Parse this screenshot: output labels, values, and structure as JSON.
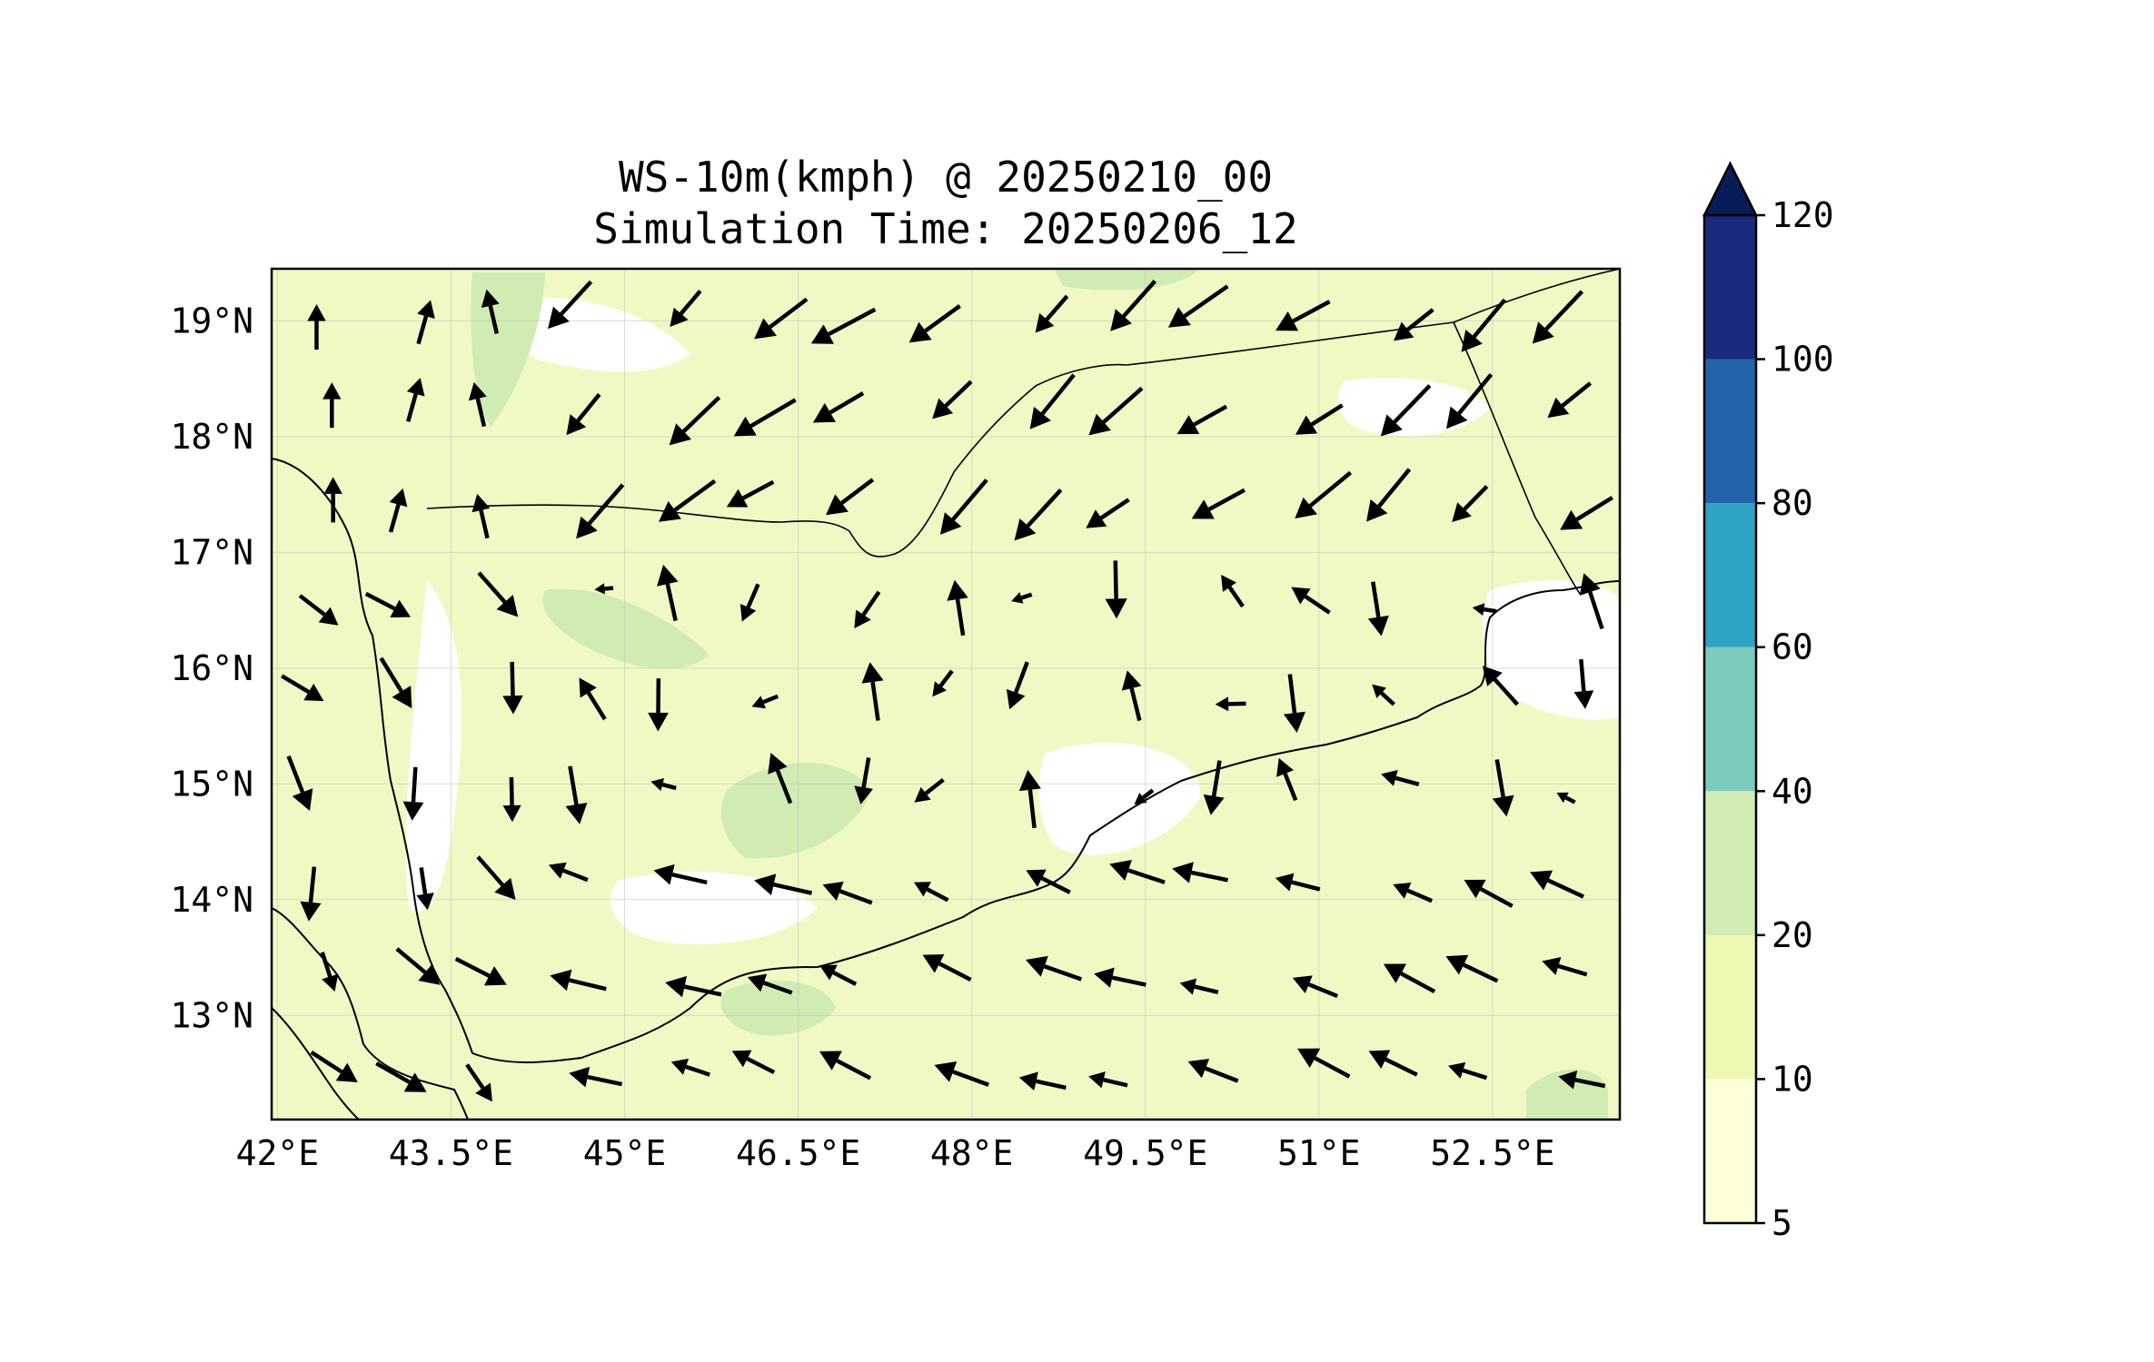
{
  "title": {
    "line1": "WS-10m(kmph) @ 20250210_00",
    "line2": "Simulation Time: 20250206_12"
  },
  "map": {
    "extent_lon": [
      41.95,
      53.6
    ],
    "extent_lat": [
      12.1,
      19.45
    ],
    "x_ticks": [
      {
        "value": 42.0,
        "label": "42°E"
      },
      {
        "value": 43.5,
        "label": "43.5°E"
      },
      {
        "value": 45.0,
        "label": "45°E"
      },
      {
        "value": 46.5,
        "label": "46.5°E"
      },
      {
        "value": 48.0,
        "label": "48°E"
      },
      {
        "value": 49.5,
        "label": "49.5°E"
      },
      {
        "value": 51.0,
        "label": "51°E"
      },
      {
        "value": 52.5,
        "label": "52.5°E"
      }
    ],
    "y_ticks": [
      {
        "value": 19,
        "label": "19°N"
      },
      {
        "value": 18,
        "label": "18°N"
      },
      {
        "value": 17,
        "label": "17°N"
      },
      {
        "value": 16,
        "label": "16°N"
      },
      {
        "value": 15,
        "label": "15°N"
      },
      {
        "value": 14,
        "label": "14°N"
      },
      {
        "value": 13,
        "label": "13°N"
      }
    ],
    "gridlines": true,
    "base_fill_color": "#f0f9c4"
  },
  "colorbar": {
    "levels": [
      5,
      10,
      20,
      40,
      60,
      80,
      100,
      120
    ],
    "tick_labels": [
      "5",
      "10",
      "20",
      "40",
      "60",
      "80",
      "100",
      "120"
    ],
    "colors": [
      "#ffffd9",
      "#edf8b1",
      "#d0ecb3",
      "#7ccbbf",
      "#2fa3c4",
      "#2263aa",
      "#1a2a7f"
    ],
    "extend_color": "#081d58",
    "extend": "max"
  }
}
